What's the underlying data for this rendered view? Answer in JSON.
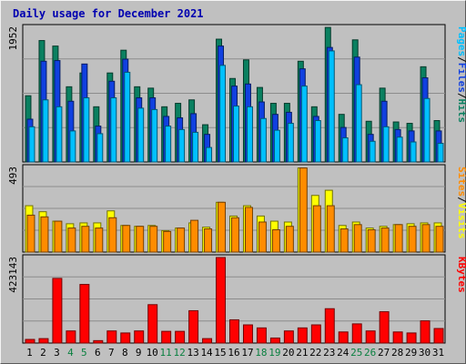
{
  "chart_data": {
    "type": "bar",
    "title": "Daily usage for December 2021",
    "categories": [
      "1",
      "2",
      "3",
      "4",
      "5",
      "6",
      "7",
      "8",
      "9",
      "10",
      "11",
      "12",
      "13",
      "14",
      "15",
      "16",
      "17",
      "18",
      "19",
      "20",
      "21",
      "22",
      "23",
      "24",
      "25",
      "26",
      "27",
      "28",
      "29",
      "30",
      "31"
    ],
    "weekend_days": [
      "4",
      "5",
      "11",
      "12",
      "18",
      "19",
      "25",
      "26"
    ],
    "panels": [
      {
        "name": "traffic",
        "max_label": "1952",
        "ymax": 1952,
        "right_label": [
          {
            "text": "Pages",
            "color": "#00c0ff"
          },
          {
            "text": "/",
            "color": "#000000"
          },
          {
            "text": "Files",
            "color": "#1040e0"
          },
          {
            "text": "/",
            "color": "#000000"
          },
          {
            "text": "Hits",
            "color": "#0a8060"
          }
        ],
        "series": [
          {
            "name": "Hits",
            "color": "#0a8060",
            "values": [
              960,
              1760,
              1680,
              1090,
              1290,
              800,
              1290,
              1620,
              1090,
              1070,
              800,
              850,
              900,
              540,
              1780,
              1210,
              1480,
              1080,
              850,
              850,
              1460,
              800,
              1950,
              690,
              1770,
              590,
              1070,
              580,
              560,
              1380,
              600
            ]
          },
          {
            "name": "Files",
            "color": "#1040e0",
            "values": [
              620,
              1460,
              1470,
              880,
              1420,
              520,
              1170,
              1490,
              930,
              930,
              660,
              640,
              700,
              400,
              1680,
              1100,
              1130,
              870,
              690,
              720,
              1350,
              660,
              1660,
              500,
              1520,
              400,
              880,
              470,
              450,
              1220,
              450
            ]
          },
          {
            "name": "Pages",
            "color": "#00c0ff",
            "values": [
              510,
              900,
              800,
              450,
              930,
              410,
              930,
              1300,
              780,
              760,
              520,
              470,
              430,
              210,
              1400,
              810,
              800,
              630,
              460,
              560,
              1100,
              600,
              1610,
              350,
              1120,
              300,
              510,
              360,
              290,
              920,
              270
            ]
          }
        ]
      },
      {
        "name": "visitors",
        "max_label": "493",
        "ymax": 493,
        "right_label": [
          {
            "text": "Sites",
            "color": "#ff8c00"
          },
          {
            "text": "/",
            "color": "#000000"
          },
          {
            "text": "Visits",
            "color": "#ffff00"
          }
        ],
        "series": [
          {
            "name": "Visits",
            "color": "#ffff00",
            "values": [
              270,
              235,
              180,
              165,
              170,
              170,
              240,
              155,
              150,
              155,
              125,
              140,
              170,
              145,
              290,
              210,
              270,
              210,
              180,
              175,
              490,
              330,
              360,
              155,
              175,
              140,
              150,
              160,
              165,
              170,
              170
            ]
          },
          {
            "name": "Sites",
            "color": "#ff8c00",
            "values": [
              215,
              205,
              180,
              140,
              150,
              140,
              200,
              155,
              150,
              150,
              120,
              140,
              185,
              135,
              290,
              200,
              260,
              175,
              130,
              150,
              490,
              270,
              270,
              135,
              160,
              130,
              140,
              160,
              150,
              160,
              150
            ]
          }
        ]
      },
      {
        "name": "volume",
        "max_label": "423143",
        "ymax": 423143,
        "right_label": [
          {
            "text": "KBytes",
            "color": "#ff0000"
          }
        ],
        "series": [
          {
            "name": "KBytes",
            "color": "#ff0000",
            "values": [
              18000,
              22000,
              320000,
              60000,
              290000,
              12000,
              60000,
              50000,
              60000,
              190000,
              58000,
              58000,
              160000,
              22000,
              423143,
              115000,
              90000,
              75000,
              25000,
              60000,
              75000,
              90000,
              170000,
              55000,
              95000,
              60000,
              155000,
              55000,
              50000,
              110000,
              72000
            ]
          }
        ]
      }
    ]
  }
}
